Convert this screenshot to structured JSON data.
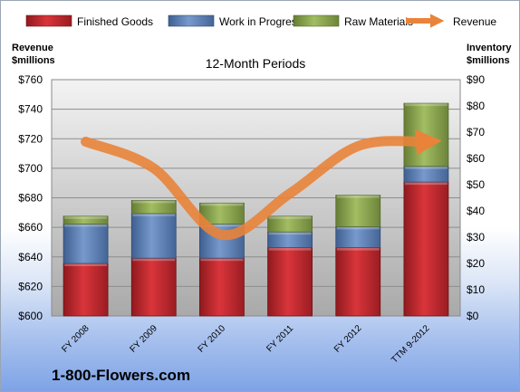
{
  "company": "1-800-Flowers.com",
  "chart_data": {
    "type": "bar",
    "title": "12-Month Periods",
    "categories": [
      "FY 2008",
      "FY 2009",
      "FY 2010",
      "FY 2011",
      "FY 2012",
      "TTM 9-2012"
    ],
    "stacked": true,
    "series": [
      {
        "name": "Finished Goods",
        "axis": "right",
        "color": "#c0272d",
        "values": [
          20,
          22,
          22,
          26,
          26,
          51
        ]
      },
      {
        "name": "Work in Progress",
        "axis": "right",
        "color": "#5b7fb5",
        "values": [
          15,
          17,
          13,
          6,
          8,
          6
        ]
      },
      {
        "name": "Raw Materials",
        "axis": "right",
        "color": "#8ca650",
        "values": [
          3,
          5,
          8,
          6,
          12,
          24
        ]
      },
      {
        "name": "Revenue",
        "type": "line",
        "axis": "left",
        "color": "#e9833a",
        "values": [
          718,
          700,
          655,
          683,
          715,
          718
        ]
      }
    ],
    "left_axis": {
      "label_line1": "Revenue",
      "label_line2": "$millions",
      "min": 600,
      "max": 760,
      "step": 20,
      "ticks": [
        "$600",
        "$620",
        "$640",
        "$660",
        "$680",
        "$700",
        "$720",
        "$740",
        "$760"
      ]
    },
    "right_axis": {
      "label_line1": "Inventory",
      "label_line2": "$millions",
      "min": 0,
      "max": 90,
      "step": 10,
      "ticks": [
        "$0",
        "$10",
        "$20",
        "$30",
        "$40",
        "$50",
        "$60",
        "$70",
        "$80",
        "$90"
      ]
    },
    "grid": true,
    "legend_position": "top"
  }
}
